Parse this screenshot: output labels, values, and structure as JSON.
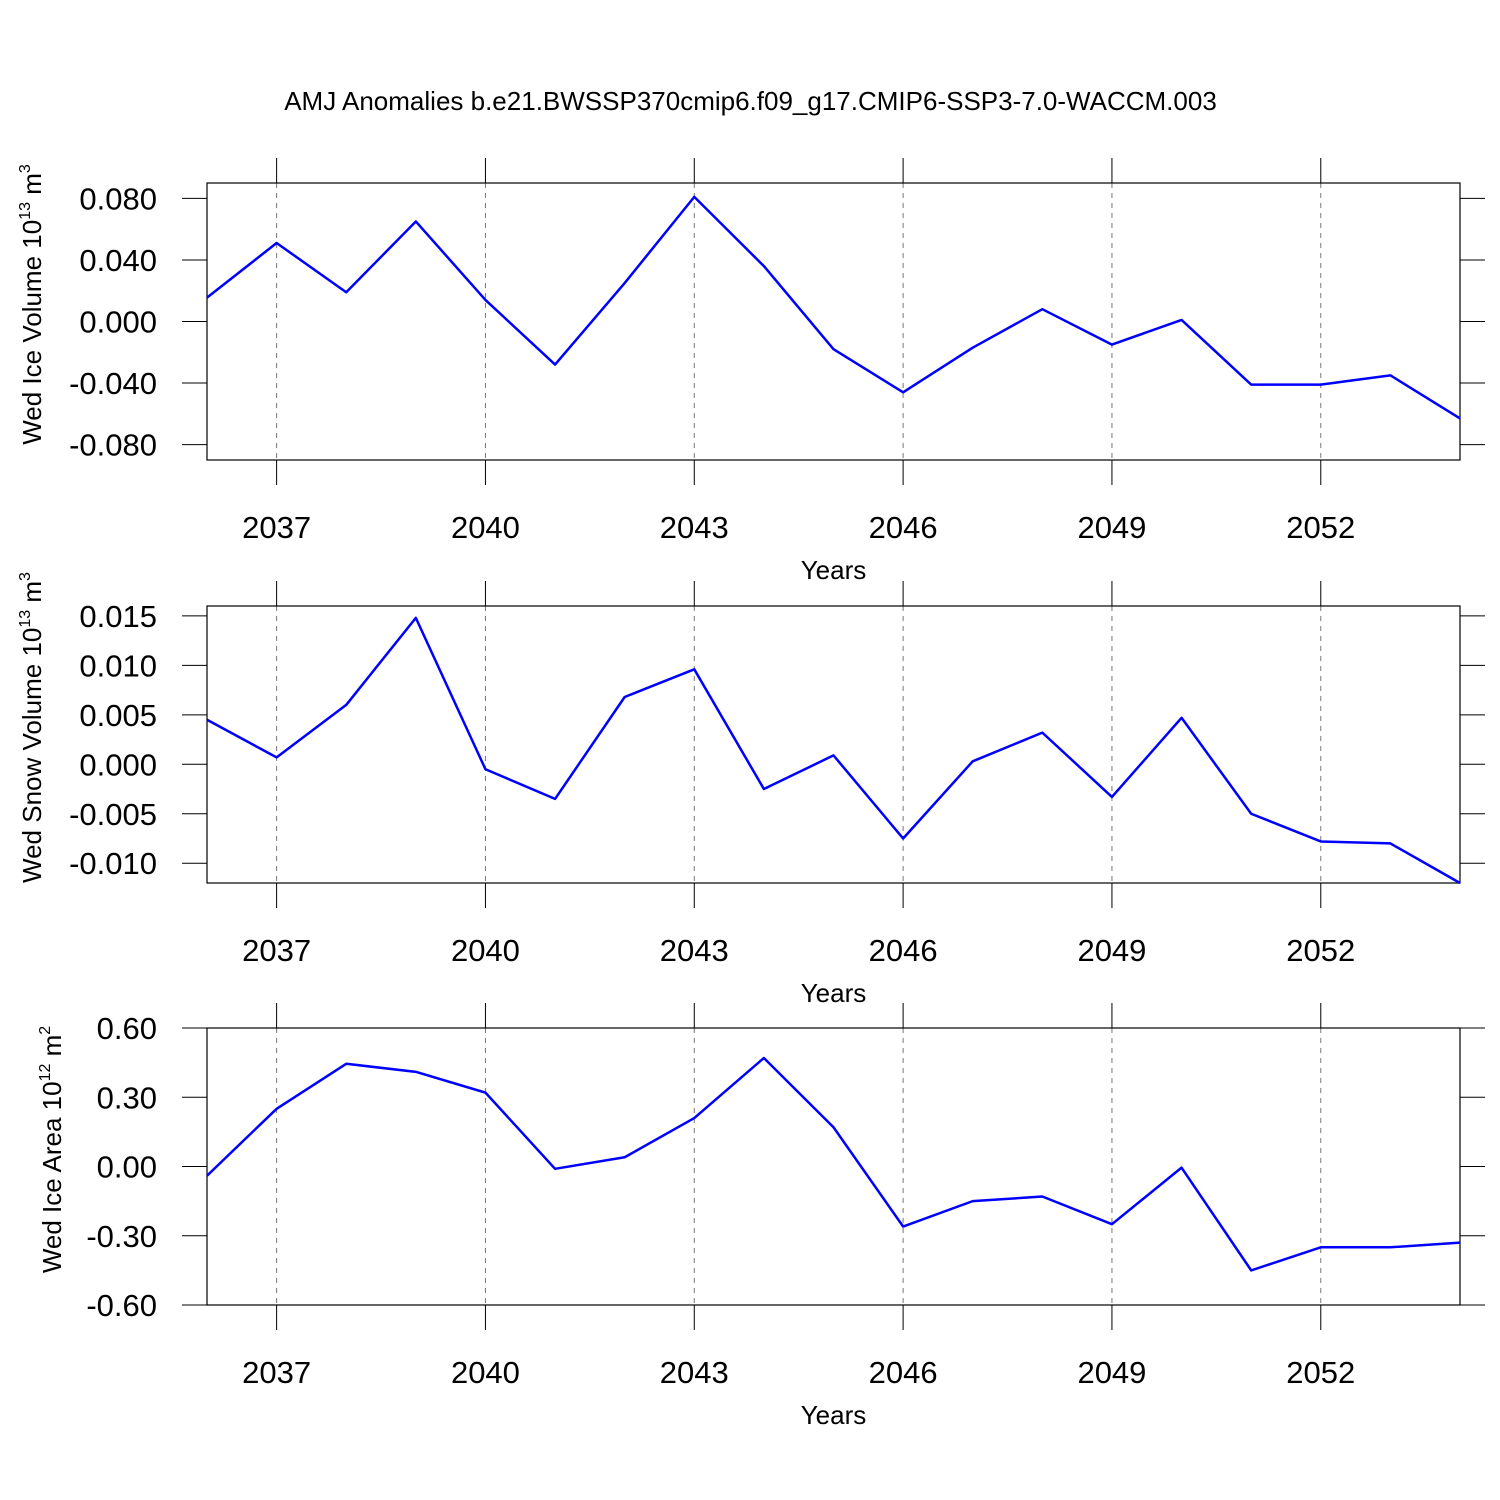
{
  "chart_data": [
    {
      "type": "line",
      "title": "AMJ Anomalies b.e21.BWSSP370cmip6.f09_g17.CMIP6-SSP3-7.0-WACCM.003",
      "xlabel": "Years",
      "ylabel": [
        "Wed Ice Volume 10",
        "13",
        " m",
        "3"
      ],
      "x": [
        2036,
        2037,
        2038,
        2039,
        2040,
        2041,
        2042,
        2043,
        2044,
        2045,
        2046,
        2047,
        2048,
        2049,
        2050,
        2051,
        2052,
        2053,
        2054
      ],
      "values": [
        0.0155,
        0.051,
        0.019,
        0.065,
        0.014,
        -0.028,
        0.025,
        0.081,
        0.036,
        -0.018,
        -0.046,
        -0.017,
        0.008,
        -0.015,
        0.001,
        -0.041,
        -0.041,
        -0.035,
        -0.063
      ],
      "color": "#0000ff",
      "xlim": [
        2036,
        2054
      ],
      "xticks": [
        2037,
        2040,
        2043,
        2046,
        2049,
        2052
      ],
      "ylim": [
        -0.09,
        0.09
      ],
      "yticks": [
        {
          "value": 0.08,
          "label": "0.080"
        },
        {
          "value": 0.04,
          "label": "0.040"
        },
        {
          "value": 0,
          "label": "0.000"
        },
        {
          "value": -0.04,
          "label": "-0.040"
        },
        {
          "value": -0.08,
          "label": "-0.080"
        }
      ],
      "grid": "x"
    },
    {
      "type": "line",
      "xlabel": "Years",
      "ylabel": [
        "Wed Snow Volume 10",
        "13",
        " m",
        "3"
      ],
      "x": [
        2036,
        2037,
        2038,
        2039,
        2040,
        2041,
        2042,
        2043,
        2044,
        2045,
        2046,
        2047,
        2048,
        2049,
        2050,
        2051,
        2052,
        2053,
        2054
      ],
      "values": [
        0.0045,
        0.0007,
        0.006,
        0.0148,
        -0.0005,
        -0.0035,
        0.0068,
        0.0096,
        -0.0025,
        0.0009,
        -0.0075,
        0.0003,
        0.0032,
        -0.0033,
        0.0047,
        -0.005,
        -0.0078,
        -0.008,
        -0.012
      ],
      "color": "#0000ff",
      "xlim": [
        2036,
        2054
      ],
      "xticks": [
        2037,
        2040,
        2043,
        2046,
        2049,
        2052
      ],
      "ylim": [
        -0.012,
        0.016
      ],
      "yticks": [
        {
          "value": 0.015,
          "label": "0.015"
        },
        {
          "value": 0.01,
          "label": "0.010"
        },
        {
          "value": 0.005,
          "label": "0.005"
        },
        {
          "value": 0,
          "label": "0.000"
        },
        {
          "value": -0.005,
          "label": "-0.005"
        },
        {
          "value": -0.01,
          "label": "-0.010"
        }
      ],
      "grid": "x"
    },
    {
      "type": "line",
      "xlabel": "Years",
      "ylabel": [
        "Wed Ice Area 10",
        "12",
        " m",
        "2"
      ],
      "x": [
        2036,
        2037,
        2038,
        2039,
        2040,
        2041,
        2042,
        2043,
        2044,
        2045,
        2046,
        2047,
        2048,
        2049,
        2050,
        2051,
        2052,
        2053,
        2054
      ],
      "values": [
        -0.04,
        0.25,
        0.445,
        0.41,
        0.32,
        -0.01,
        0.04,
        0.21,
        0.47,
        0.17,
        -0.26,
        -0.15,
        -0.13,
        -0.25,
        -0.005,
        -0.45,
        -0.35,
        -0.35,
        -0.33
      ],
      "color": "#0000ff",
      "xlim": [
        2036,
        2054
      ],
      "xticks": [
        2037,
        2040,
        2043,
        2046,
        2049,
        2052
      ],
      "ylim": [
        -0.6,
        0.6
      ],
      "yticks": [
        {
          "value": 0.6,
          "label": "0.60"
        },
        {
          "value": 0.3,
          "label": "0.30"
        },
        {
          "value": 0,
          "label": "0.00"
        },
        {
          "value": -0.3,
          "label": "-0.30"
        },
        {
          "value": -0.6,
          "label": "-0.60"
        }
      ],
      "grid": "x"
    }
  ]
}
